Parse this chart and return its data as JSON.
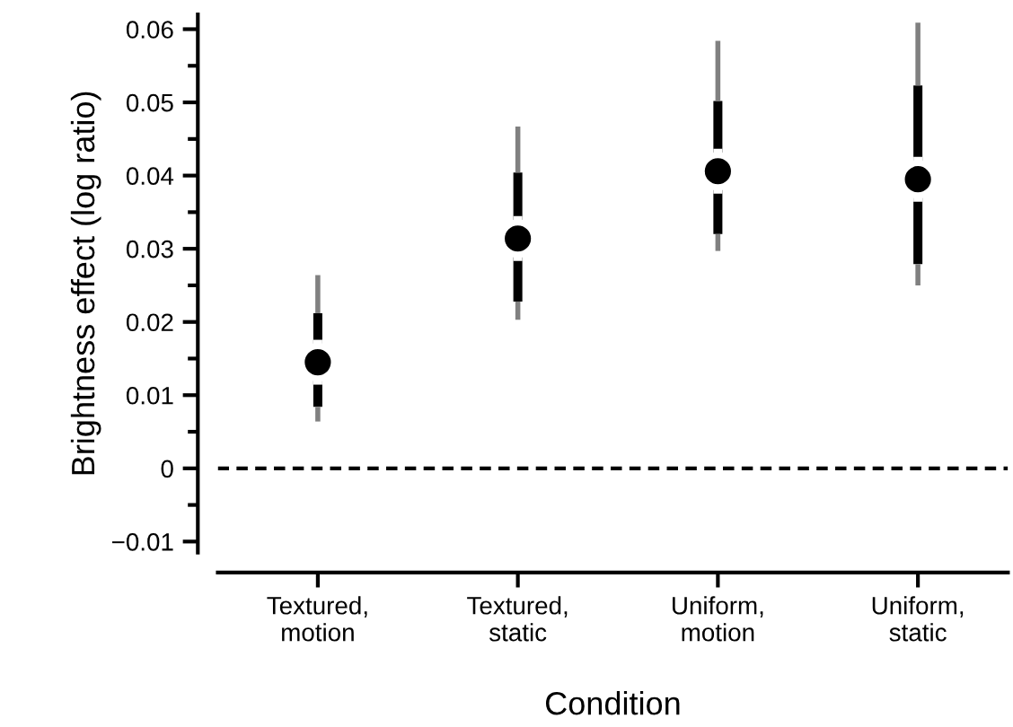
{
  "chart_data": {
    "type": "box",
    "xlabel": "Condition",
    "ylabel": "Brightness effect (log ratio)",
    "categories": [
      "Textured,\nmotion",
      "Textured,\nstatic",
      "Uniform,\nmotion",
      "Uniform,\nstatic"
    ],
    "boxes": [
      {
        "low": 0.0064,
        "q1": 0.0084,
        "median": 0.0145,
        "mean": 0.0145,
        "q3": 0.0212,
        "high": 0.0264
      },
      {
        "low": 0.0203,
        "q1": 0.0228,
        "median": 0.0314,
        "mean": 0.0314,
        "q3": 0.0404,
        "high": 0.0467
      },
      {
        "low": 0.0297,
        "q1": 0.032,
        "median": 0.0406,
        "mean": 0.0406,
        "q3": 0.0502,
        "high": 0.0584
      },
      {
        "low": 0.025,
        "q1": 0.0279,
        "median": 0.0395,
        "mean": 0.0395,
        "q3": 0.0523,
        "high": 0.0609
      }
    ],
    "marker": "circle",
    "ylim": [
      -0.0115,
      0.062
    ],
    "yticks": [
      {
        "value": -0.01,
        "label": "−0.01"
      },
      0,
      0.01,
      0.02,
      0.03,
      0.04,
      0.05,
      0.06
    ],
    "ref_lines": [
      {
        "axis": "y",
        "value": 0,
        "color": "#000000",
        "line_style": "dashed"
      }
    ],
    "grid": false,
    "legend": false
  }
}
